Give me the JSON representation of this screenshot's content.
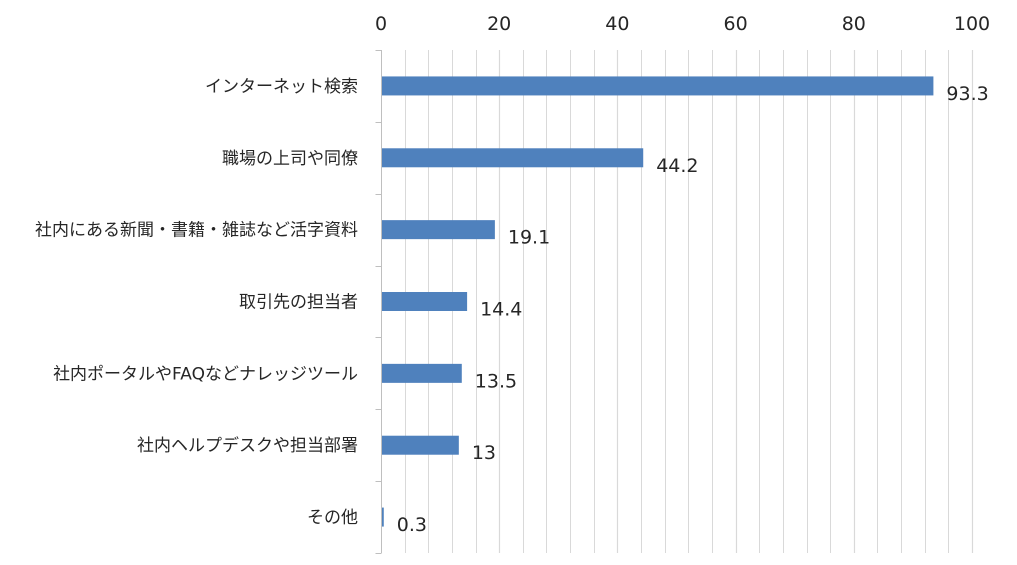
{
  "chart_data": {
    "type": "bar",
    "orientation": "horizontal",
    "categories": [
      "インターネット検索",
      "職場の上司や同僚",
      "社内にある新聞・書籍・雑誌など活字資料",
      "取引先の担当者",
      "社内ポータルやFAQなどナレッジツール",
      "社内ヘルプデスクや担当部署",
      "その他"
    ],
    "values": [
      93.3,
      44.2,
      19.1,
      14.4,
      13.5,
      13,
      0.3
    ],
    "value_labels": [
      "93.3",
      "44.2",
      "19.1",
      "14.4",
      "13.5",
      "13",
      "0.3"
    ],
    "x_ticks": [
      "0",
      "20",
      "40",
      "60",
      "80",
      "100"
    ],
    "xlim": [
      0,
      100
    ],
    "minor_step": 4,
    "major_step": 20,
    "axis_position": "top",
    "grid": true,
    "legend": "none",
    "title": "",
    "xlabel": "",
    "ylabel": "",
    "colors": {
      "bar": "#4f81bd",
      "grid": "#d9d9d9",
      "axis": "#bfbfbf",
      "text": "#262626"
    }
  }
}
